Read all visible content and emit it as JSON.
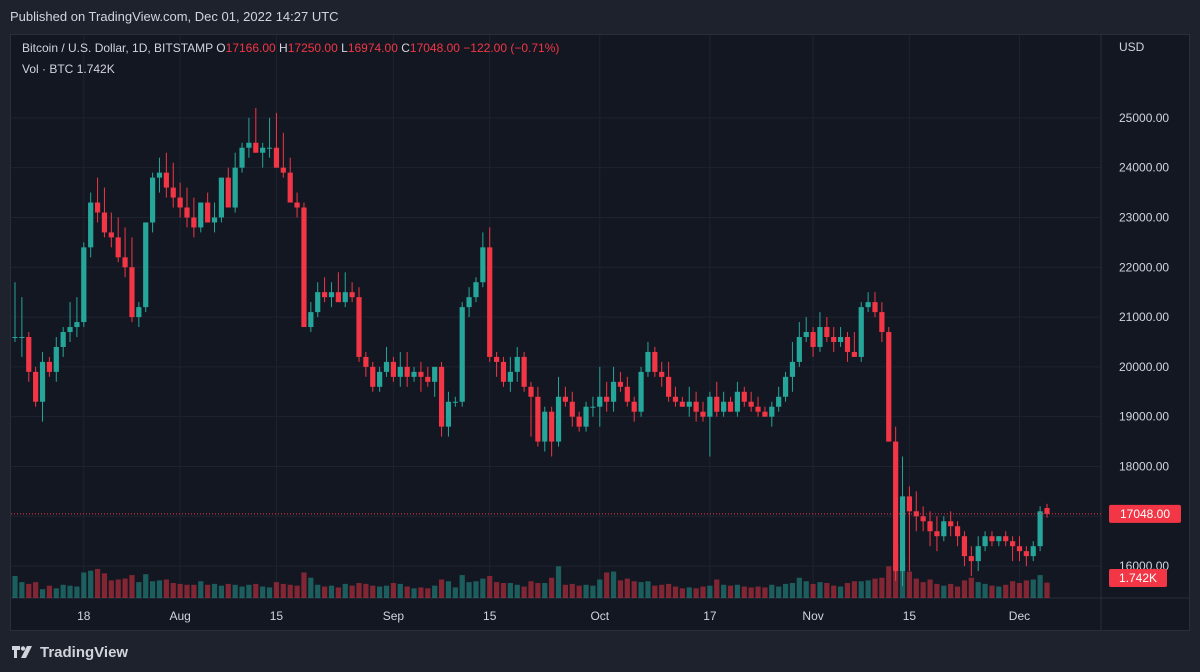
{
  "header": {
    "published": "Published on TradingView.com, Dec 01, 2022 14:27 UTC"
  },
  "legend": {
    "symbol": "Bitcoin / U.S. Dollar, 1D, BITSTAMP",
    "o_label": "O",
    "o_value": "17166.00",
    "h_label": "H",
    "h_value": "17250.00",
    "l_label": "L",
    "l_value": "16974.00",
    "c_label": "C",
    "c_value": "17048.00",
    "change": "−122.00 (−0.71%)",
    "vol_label": "Vol · BTC",
    "vol_value": "1.742K"
  },
  "footer": {
    "brand": "TradingView",
    "logo_icon": "tradingview-logo-icon"
  },
  "colors": {
    "up": "#26a69a",
    "down": "#f23645",
    "background": "#131722",
    "text": "#d1d4dc",
    "grid": "#1f2330"
  },
  "chart_data": {
    "type": "candlestick",
    "title": "Bitcoin / U.S. Dollar, 1D, BITSTAMP",
    "y_axis_label": "USD",
    "ylim": [
      15500,
      25700
    ],
    "y_ticks": [
      "25000.00",
      "24000.00",
      "23000.00",
      "22000.00",
      "21000.00",
      "20000.00",
      "19000.00",
      "18000.00",
      "17000.00",
      "16000.00"
    ],
    "x_ticks": [
      {
        "label": "18",
        "index": 10
      },
      {
        "label": "Aug",
        "index": 24
      },
      {
        "label": "15",
        "index": 38
      },
      {
        "label": "Sep",
        "index": 55
      },
      {
        "label": "15",
        "index": 69
      },
      {
        "label": "Oct",
        "index": 85
      },
      {
        "label": "17",
        "index": 101
      },
      {
        "label": "Nov",
        "index": 116
      },
      {
        "label": "15",
        "index": 130
      },
      {
        "label": "Dec",
        "index": 146
      }
    ],
    "last_price_label": "17048.00",
    "last_price": 17048,
    "last_volume_label": "1.742K",
    "candles": [
      [
        20600,
        21700,
        20500,
        20600,
        2.5
      ],
      [
        20600,
        21400,
        20200,
        20600,
        1.8
      ],
      [
        20600,
        20700,
        19700,
        19900,
        1.6
      ],
      [
        19900,
        20000,
        19200,
        19300,
        1.8
      ],
      [
        19300,
        20300,
        18900,
        20100,
        1.0
      ],
      [
        20100,
        20200,
        19800,
        19900,
        1.4
      ],
      [
        19900,
        20600,
        19700,
        20400,
        1.1
      ],
      [
        20400,
        20800,
        20200,
        20700,
        1.5
      ],
      [
        20700,
        21300,
        20500,
        20800,
        1.4
      ],
      [
        20800,
        21400,
        20600,
        20900,
        1.3
      ],
      [
        20900,
        22500,
        20800,
        22400,
        2.9
      ],
      [
        22400,
        23500,
        22200,
        23300,
        3.1
      ],
      [
        23300,
        23800,
        22900,
        23100,
        3.3
      ],
      [
        23100,
        23600,
        22600,
        22700,
        2.8
      ],
      [
        22700,
        23100,
        22400,
        22600,
        2.0
      ],
      [
        22600,
        23000,
        22100,
        22200,
        2.1
      ],
      [
        22200,
        22800,
        21800,
        22000,
        2.2
      ],
      [
        22000,
        22600,
        20900,
        21000,
        2.6
      ],
      [
        21000,
        21300,
        20800,
        21200,
        1.8
      ],
      [
        21200,
        22900,
        21100,
        22900,
        2.7
      ],
      [
        22900,
        23900,
        22700,
        23800,
        1.9
      ],
      [
        23800,
        24200,
        23500,
        23900,
        2.0
      ],
      [
        23900,
        24300,
        23400,
        23600,
        2.1
      ],
      [
        23600,
        24100,
        23200,
        23400,
        1.7
      ],
      [
        23400,
        23700,
        23000,
        23200,
        1.6
      ],
      [
        23200,
        23600,
        22800,
        23000,
        1.5
      ],
      [
        23000,
        23400,
        22600,
        22800,
        1.5
      ],
      [
        22800,
        23300,
        22700,
        23300,
        1.9
      ],
      [
        23300,
        23500,
        22900,
        22900,
        1.5
      ],
      [
        22900,
        23300,
        22700,
        23000,
        1.6
      ],
      [
        23000,
        23800,
        22900,
        23800,
        1.4
      ],
      [
        23800,
        24000,
        23300,
        23200,
        1.6
      ],
      [
        23200,
        24300,
        23100,
        24000,
        1.5
      ],
      [
        24000,
        24500,
        23900,
        24400,
        1.3
      ],
      [
        24400,
        25000,
        24200,
        24500,
        1.5
      ],
      [
        24500,
        25200,
        24300,
        24300,
        1.6
      ],
      [
        24300,
        24500,
        24000,
        24400,
        1.3
      ],
      [
        24400,
        25000,
        24200,
        24400,
        1.2
      ],
      [
        24400,
        25100,
        24000,
        24000,
        1.8
      ],
      [
        24000,
        24700,
        23800,
        23900,
        1.6
      ],
      [
        23900,
        24200,
        23300,
        23300,
        1.5
      ],
      [
        23300,
        23500,
        23000,
        23200,
        1.4
      ],
      [
        23200,
        23300,
        20800,
        20800,
        2.9
      ],
      [
        20800,
        21300,
        20700,
        21100,
        2.3
      ],
      [
        21100,
        21700,
        21000,
        21500,
        1.5
      ],
      [
        21500,
        21800,
        21300,
        21400,
        1.3
      ],
      [
        21400,
        21700,
        21200,
        21500,
        1.4
      ],
      [
        21500,
        21900,
        21300,
        21300,
        1.2
      ],
      [
        21300,
        21900,
        21200,
        21500,
        1.6
      ],
      [
        21500,
        21700,
        21300,
        21400,
        1.4
      ],
      [
        21400,
        21600,
        20100,
        20200,
        1.7
      ],
      [
        20200,
        20300,
        19800,
        20000,
        1.6
      ],
      [
        20000,
        20100,
        19500,
        19600,
        1.4
      ],
      [
        19600,
        20000,
        19500,
        19900,
        1.3
      ],
      [
        19900,
        20400,
        19800,
        20100,
        1.4
      ],
      [
        20100,
        20200,
        19700,
        19800,
        1.7
      ],
      [
        19800,
        20300,
        19600,
        20000,
        1.6
      ],
      [
        20000,
        20300,
        19600,
        19800,
        1.3
      ],
      [
        19800,
        20000,
        19700,
        19900,
        1.1
      ],
      [
        19900,
        20100,
        19500,
        19800,
        1.2
      ],
      [
        19800,
        20000,
        19600,
        19700,
        1.1
      ],
      [
        19700,
        20000,
        19400,
        20000,
        1.4
      ],
      [
        20000,
        20100,
        18600,
        18800,
        2.1
      ],
      [
        18800,
        19500,
        18600,
        19300,
        1.9
      ],
      [
        19300,
        19400,
        19200,
        19300,
        1.2
      ],
      [
        19300,
        21300,
        19200,
        21200,
        2.6
      ],
      [
        21200,
        21600,
        21000,
        21400,
        1.8
      ],
      [
        21400,
        21800,
        21300,
        21700,
        1.9
      ],
      [
        21700,
        22700,
        21600,
        22400,
        2.2
      ],
      [
        22400,
        22800,
        20100,
        20200,
        2.5
      ],
      [
        20200,
        20300,
        19800,
        20100,
        1.8
      ],
      [
        20100,
        20200,
        19600,
        19700,
        1.7
      ],
      [
        19700,
        20200,
        19500,
        19900,
        1.7
      ],
      [
        19900,
        20400,
        19700,
        20200,
        1.5
      ],
      [
        20200,
        20300,
        19500,
        19600,
        1.3
      ],
      [
        19600,
        19700,
        18600,
        19400,
        1.9
      ],
      [
        19400,
        19600,
        18400,
        18500,
        1.7
      ],
      [
        18500,
        19200,
        18300,
        19100,
        1.7
      ],
      [
        19100,
        19200,
        18200,
        18500,
        2.3
      ],
      [
        18500,
        19800,
        18400,
        19400,
        3.6
      ],
      [
        19400,
        19600,
        19200,
        19300,
        1.5
      ],
      [
        19300,
        19500,
        18800,
        19000,
        1.6
      ],
      [
        19000,
        19100,
        18700,
        18800,
        1.4
      ],
      [
        18800,
        19300,
        18700,
        19200,
        1.5
      ],
      [
        19200,
        19400,
        19000,
        19200,
        1.4
      ],
      [
        19200,
        20000,
        18800,
        19400,
        2.1
      ],
      [
        19400,
        19700,
        19100,
        19300,
        2.9
      ],
      [
        19300,
        20000,
        19100,
        19700,
        3.0
      ],
      [
        19700,
        19900,
        19500,
        19600,
        2.0
      ],
      [
        19600,
        19800,
        19200,
        19300,
        2.2
      ],
      [
        19300,
        19400,
        18900,
        19100,
        1.9
      ],
      [
        19100,
        20000,
        19000,
        19900,
        1.8
      ],
      [
        19900,
        20500,
        19800,
        20300,
        1.9
      ],
      [
        20300,
        20400,
        19800,
        19900,
        1.4
      ],
      [
        19900,
        20100,
        19600,
        19800,
        1.5
      ],
      [
        19800,
        20100,
        19300,
        19400,
        1.6
      ],
      [
        19400,
        19600,
        19200,
        19300,
        1.3
      ],
      [
        19300,
        19400,
        19200,
        19200,
        1.1
      ],
      [
        19200,
        19600,
        19000,
        19300,
        1.2
      ],
      [
        19300,
        19500,
        18900,
        19100,
        1.1
      ],
      [
        19100,
        19300,
        18900,
        19000,
        1.3
      ],
      [
        19000,
        19500,
        18200,
        19400,
        1.4
      ],
      [
        19400,
        19700,
        19000,
        19100,
        2.1
      ],
      [
        19100,
        19500,
        19000,
        19300,
        1.5
      ],
      [
        19300,
        19400,
        19100,
        19100,
        1.4
      ],
      [
        19100,
        19700,
        19000,
        19500,
        1.5
      ],
      [
        19500,
        19600,
        19200,
        19300,
        1.3
      ],
      [
        19300,
        19500,
        19100,
        19200,
        1.2
      ],
      [
        19200,
        19400,
        19000,
        19100,
        1.3
      ],
      [
        19100,
        19200,
        19000,
        19000,
        1.2
      ],
      [
        19000,
        19300,
        18800,
        19200,
        1.5
      ],
      [
        19200,
        19600,
        19100,
        19400,
        1.3
      ],
      [
        19400,
        19900,
        19300,
        19800,
        1.6
      ],
      [
        19800,
        20500,
        19500,
        20100,
        1.7
      ],
      [
        20100,
        20900,
        20000,
        20600,
        2.3
      ],
      [
        20600,
        21000,
        20500,
        20700,
        1.9
      ],
      [
        20700,
        20800,
        20200,
        20400,
        1.6
      ],
      [
        20400,
        21100,
        20300,
        20800,
        1.8
      ],
      [
        20800,
        21000,
        20500,
        20600,
        1.7
      ],
      [
        20600,
        20800,
        20300,
        20500,
        1.4
      ],
      [
        20500,
        20800,
        20400,
        20600,
        1.3
      ],
      [
        20600,
        20700,
        20100,
        20300,
        1.7
      ],
      [
        20300,
        20700,
        20200,
        20200,
        1.9
      ],
      [
        20200,
        21300,
        20100,
        21200,
        1.9
      ],
      [
        21200,
        21500,
        21100,
        21300,
        2.0
      ],
      [
        21300,
        21500,
        21000,
        21100,
        2.2
      ],
      [
        21100,
        21300,
        20500,
        20700,
        2.3
      ],
      [
        20700,
        20800,
        18500,
        18500,
        3.6
      ],
      [
        18500,
        18800,
        15700,
        15900,
        5.9
      ],
      [
        15900,
        18200,
        15600,
        17400,
        4.8
      ],
      [
        17400,
        17600,
        15900,
        17100,
        3.0
      ],
      [
        17100,
        17500,
        16700,
        17000,
        2.2
      ],
      [
        17000,
        17200,
        16700,
        16900,
        1.8
      ],
      [
        16900,
        17100,
        16400,
        16700,
        2.1
      ],
      [
        16700,
        17000,
        16300,
        16600,
        1.6
      ],
      [
        16600,
        17000,
        16500,
        16900,
        1.4
      ],
      [
        16900,
        17100,
        16600,
        16800,
        1.6
      ],
      [
        16800,
        16900,
        16400,
        16600,
        1.3
      ],
      [
        16600,
        16700,
        16000,
        16200,
        2.0
      ],
      [
        16200,
        16400,
        15800,
        16100,
        2.3
      ],
      [
        16100,
        16600,
        15900,
        16400,
        1.8
      ],
      [
        16400,
        16700,
        16300,
        16600,
        1.6
      ],
      [
        16600,
        16700,
        16400,
        16500,
        1.4
      ],
      [
        16500,
        16600,
        16400,
        16600,
        1.3
      ],
      [
        16600,
        16700,
        16400,
        16500,
        1.5
      ],
      [
        16500,
        16600,
        16100,
        16400,
        1.9
      ],
      [
        16400,
        16600,
        16100,
        16300,
        1.7
      ],
      [
        16300,
        16400,
        16000,
        16200,
        2.0
      ],
      [
        16200,
        16500,
        16100,
        16400,
        2.1
      ],
      [
        16400,
        17200,
        16300,
        17100,
        2.6
      ],
      [
        17166,
        17250,
        16974,
        17048,
        1.742
      ]
    ]
  }
}
